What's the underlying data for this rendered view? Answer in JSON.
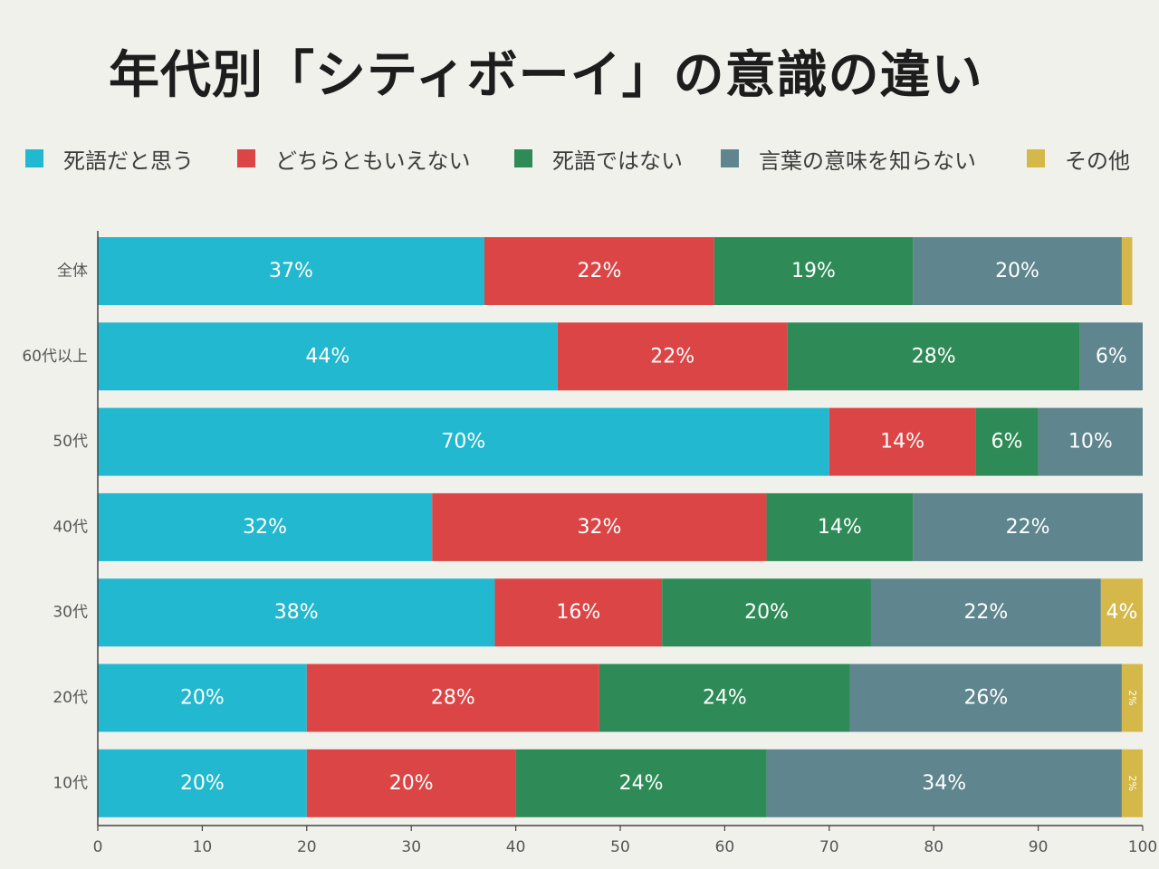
{
  "chart_data": {
    "type": "bar",
    "orientation": "horizontal",
    "stacked": true,
    "title": "年代別「シティボーイ」の意識の違い",
    "categories": [
      "全体",
      "60代以上",
      "50代",
      "40代",
      "30代",
      "20代",
      "10代"
    ],
    "series": [
      {
        "name": "死語だと思う",
        "color": "#22b8cf",
        "values": [
          37,
          44,
          70,
          32,
          38,
          20,
          20
        ]
      },
      {
        "name": "どちらともいえない",
        "color": "#dc4545",
        "values": [
          22,
          22,
          14,
          32,
          16,
          28,
          20
        ]
      },
      {
        "name": "死語ではない",
        "color": "#2e8b57",
        "values": [
          19,
          28,
          6,
          14,
          20,
          24,
          24
        ]
      },
      {
        "name": "言葉の意味を知らない",
        "color": "#5f858f",
        "values": [
          20,
          6,
          10,
          22,
          22,
          26,
          34
        ]
      },
      {
        "name": "その他",
        "color": "#d4b84a",
        "values": [
          1,
          0,
          0,
          0,
          4,
          2,
          2
        ]
      }
    ],
    "data_labels": [
      [
        "37%",
        "22%",
        "19%",
        "20%",
        ""
      ],
      [
        "44%",
        "22%",
        "28%",
        "6%",
        ""
      ],
      [
        "70%",
        "14%",
        "6%",
        "10%",
        ""
      ],
      [
        "32%",
        "32%",
        "14%",
        "22%",
        ""
      ],
      [
        "38%",
        "16%",
        "20%",
        "22%",
        "4%"
      ],
      [
        "20%",
        "28%",
        "24%",
        "26%",
        "2%"
      ],
      [
        "20%",
        "20%",
        "24%",
        "34%",
        "2%"
      ]
    ],
    "xlim": [
      0,
      100
    ],
    "xticks": [
      0,
      10,
      20,
      30,
      40,
      50,
      60,
      70,
      80,
      90,
      100
    ],
    "xlabel": "",
    "ylabel": "",
    "legend_position": "top",
    "grid": false
  }
}
